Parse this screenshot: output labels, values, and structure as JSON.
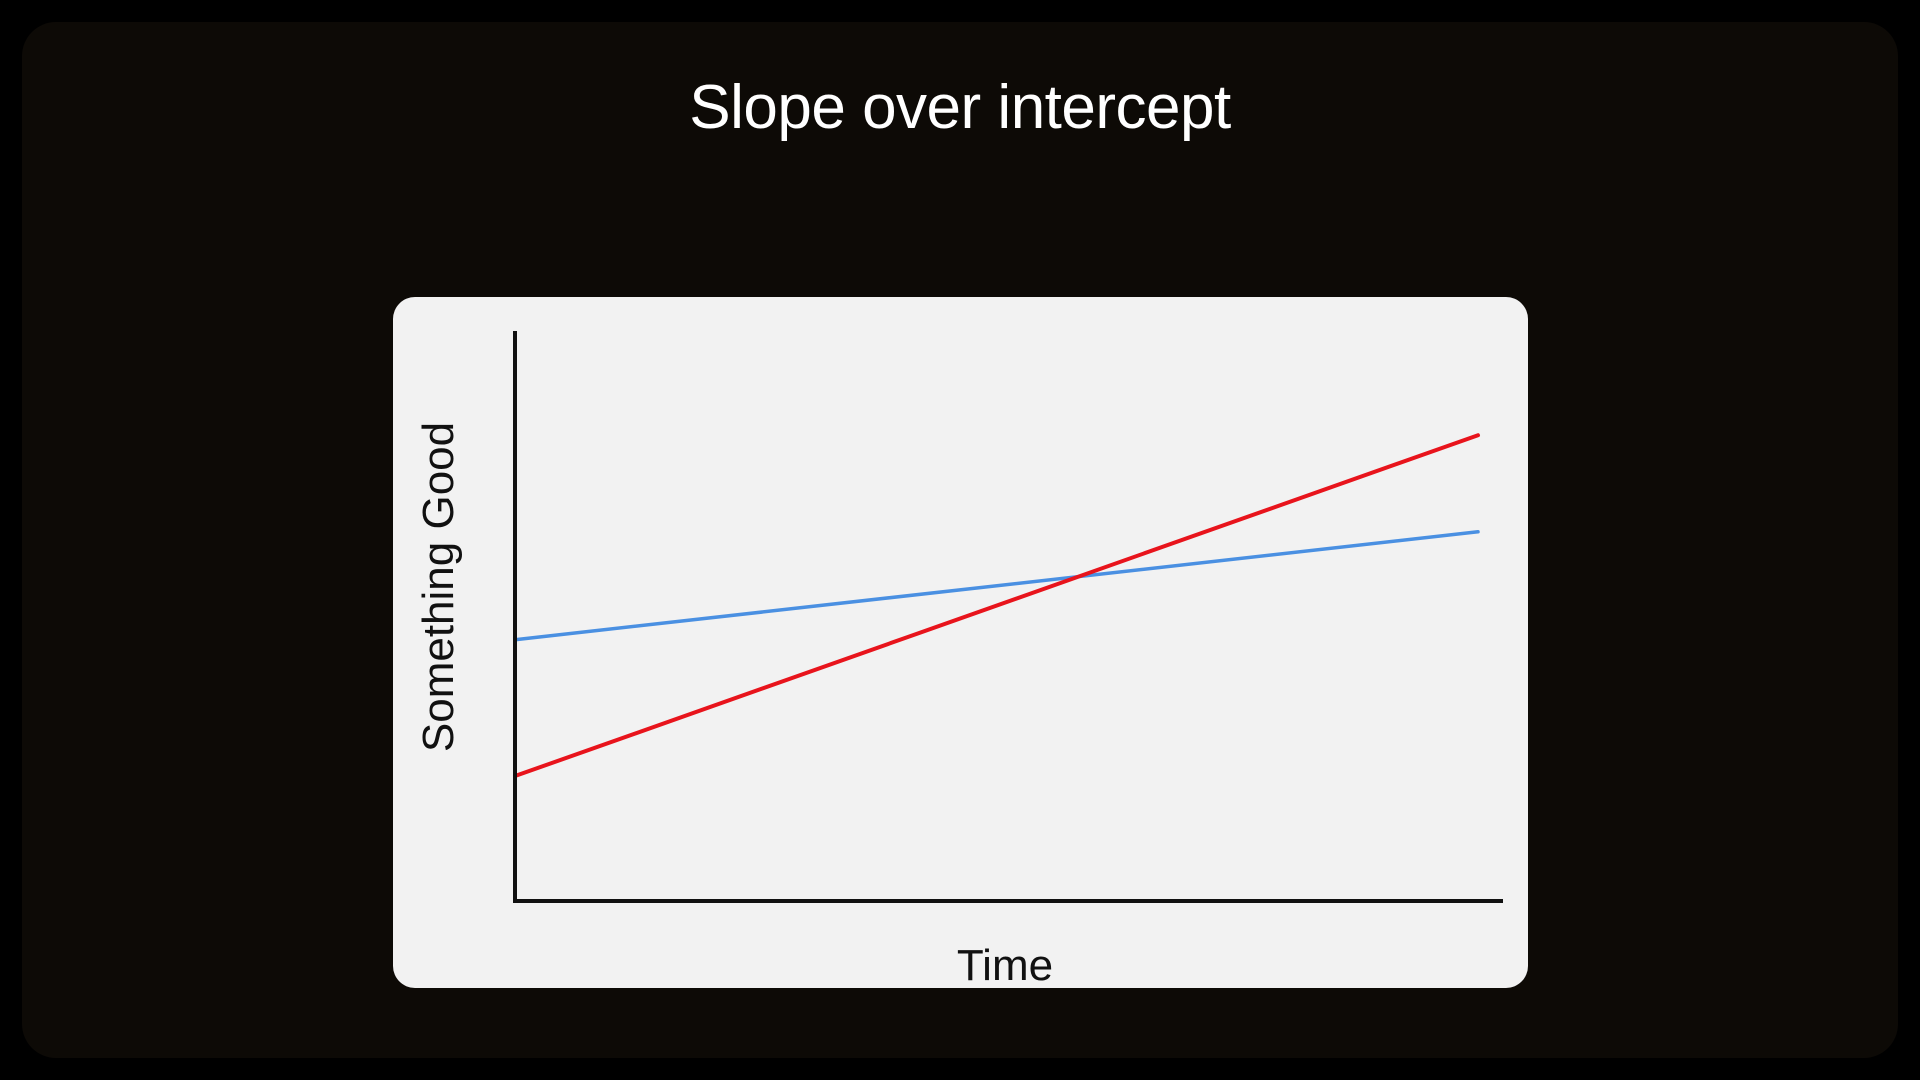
{
  "slide": {
    "title": "Slope over intercept",
    "background_color": "#0d0a06",
    "card_color": "#f2f2f2"
  },
  "chart_data": {
    "type": "line",
    "title": "Slope over intercept",
    "xlabel": "Time",
    "ylabel": "Something Good",
    "xlim": [
      0,
      1
    ],
    "ylim": [
      0,
      1
    ],
    "show_ticks": false,
    "grid": false,
    "legend": "none",
    "series": [
      {
        "color": "#4a90e2",
        "x": [
          0,
          1
        ],
        "y": [
          0.46,
          0.65
        ]
      },
      {
        "color": "#e8141c",
        "x": [
          0,
          1
        ],
        "y": [
          0.22,
          0.82
        ]
      }
    ]
  }
}
